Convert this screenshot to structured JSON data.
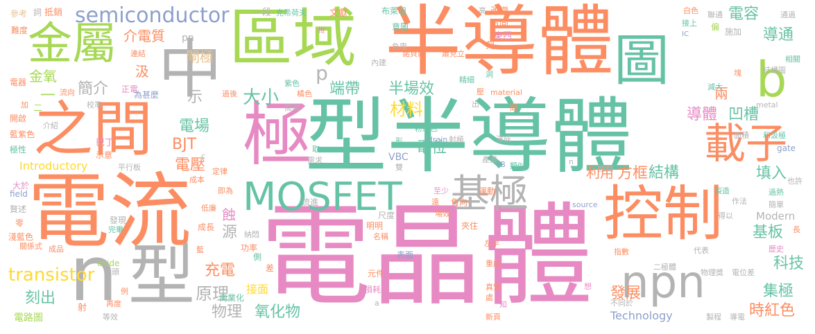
{
  "colors": {
    "pink": "#e78ac3",
    "green": "#66c2a5",
    "orange": "#fc8d62",
    "lime": "#a6d854",
    "gray": "#b3b3b3",
    "blue": "#8da0cb",
    "yellow": "#ffd92f",
    "tan": "#e5c494"
  },
  "words": [
    {
      "text": "電晶體",
      "color": "pink"
    },
    {
      "text": "型半導體",
      "color": "green"
    },
    {
      "text": "半導體",
      "color": "orange"
    },
    {
      "text": "電流",
      "color": "orange"
    },
    {
      "text": "區域",
      "color": "lime"
    },
    {
      "text": "中",
      "color": "gray"
    },
    {
      "text": "之間",
      "color": "orange"
    },
    {
      "text": "極",
      "color": "pink"
    },
    {
      "text": "MOSFET",
      "color": "green"
    },
    {
      "text": "控制",
      "color": "orange"
    },
    {
      "text": "圖",
      "color": "green"
    },
    {
      "text": "型",
      "color": "gray"
    },
    {
      "text": "金屬",
      "color": "lime"
    },
    {
      "text": "n",
      "color": "gray"
    },
    {
      "text": "npn",
      "color": "gray"
    },
    {
      "text": "載子",
      "color": "orange"
    },
    {
      "text": "基極",
      "color": "gray"
    },
    {
      "text": "b",
      "color": "lime"
    },
    {
      "text": "semiconductor",
      "color": "blue"
    },
    {
      "text": "transistor",
      "color": "yellow"
    },
    {
      "text": "材料",
      "color": "yellow"
    },
    {
      "text": "大小",
      "color": "green"
    },
    {
      "text": "半場效",
      "color": "green"
    },
    {
      "text": "導體",
      "color": "pink"
    },
    {
      "text": "凹槽",
      "color": "green"
    },
    {
      "text": "電容",
      "color": "green"
    },
    {
      "text": "導通",
      "color": "green"
    },
    {
      "text": "端帶",
      "color": "green"
    },
    {
      "text": "電位",
      "color": "green"
    },
    {
      "text": "方框",
      "color": "orange"
    },
    {
      "text": "利用",
      "color": "orange"
    },
    {
      "text": "結構",
      "color": "green"
    },
    {
      "text": "填入",
      "color": "green"
    },
    {
      "text": "基板",
      "color": "green"
    },
    {
      "text": "科技",
      "color": "green"
    },
    {
      "text": "集極",
      "color": "green"
    },
    {
      "text": "時紅色",
      "color": "orange"
    },
    {
      "text": "發展",
      "color": "orange"
    },
    {
      "text": "氧化物",
      "color": "green"
    },
    {
      "text": "原理",
      "color": "gray"
    },
    {
      "text": "物理",
      "color": "gray"
    },
    {
      "text": "刻出",
      "color": "green"
    },
    {
      "text": "充電",
      "color": "orange"
    },
    {
      "text": "電壓",
      "color": "orange"
    },
    {
      "text": "電場",
      "color": "green"
    },
    {
      "text": "BJT",
      "color": "orange"
    },
    {
      "text": "閘極",
      "color": "tan"
    },
    {
      "text": "介電質",
      "color": "orange"
    },
    {
      "text": "簡介",
      "color": "gray"
    },
    {
      "text": "金氧",
      "color": "lime"
    },
    {
      "text": "p",
      "color": "gray"
    },
    {
      "text": "Introductory",
      "color": "yellow"
    },
    {
      "text": "Technology",
      "color": "blue"
    },
    {
      "text": "Modern",
      "color": "gray"
    },
    {
      "text": "VBC",
      "color": "blue"
    },
    {
      "text": "電路圖",
      "color": "lime"
    },
    {
      "text": "接面",
      "color": "yellow"
    },
    {
      "text": "源",
      "color": "gray"
    },
    {
      "text": "蝕",
      "color": "pink"
    },
    {
      "text": "汲",
      "color": "orange"
    },
    {
      "text": "兩",
      "color": "orange"
    },
    {
      "text": "示",
      "color": "gray"
    },
    {
      "text": "一",
      "color": "lime"
    },
    {
      "text": "參考",
      "color": "tan"
    },
    {
      "text": "詞",
      "color": "gray"
    },
    {
      "text": "抵銷",
      "color": "orange"
    },
    {
      "text": "一段",
      "color": "gray"
    },
    {
      "text": "克希荷夫",
      "color": "green"
    },
    {
      "text": "文獻",
      "color": "orange"
    },
    {
      "text": "布萊坦",
      "color": "green"
    },
    {
      "text": "意圖",
      "color": "green"
    },
    {
      "text": "高",
      "color": "gray"
    },
    {
      "text": "改變",
      "color": "orange"
    },
    {
      "text": "方向",
      "color": "orange"
    },
    {
      "text": "東西",
      "color": "pink"
    },
    {
      "text": "刻",
      "color": "orange"
    },
    {
      "text": "白色",
      "color": "orange"
    },
    {
      "text": "接上",
      "color": "green"
    },
    {
      "text": "聯通",
      "color": "gray"
    },
    {
      "text": "通過",
      "color": "gray"
    },
    {
      "text": "偏",
      "color": "lime"
    },
    {
      "text": "施加",
      "color": "gray"
    },
    {
      "text": "IC",
      "color": "blue"
    },
    {
      "text": "相",
      "color": "pink"
    },
    {
      "text": "難度",
      "color": "orange"
    },
    {
      "text": "pn",
      "color": "gray"
    },
    {
      "text": "電器",
      "color": "orange"
    },
    {
      "text": "流向",
      "color": "orange"
    },
    {
      "text": "連結",
      "color": "orange"
    },
    {
      "text": "正電",
      "color": "pink"
    },
    {
      "text": "為甚麼",
      "color": "blue"
    },
    {
      "text": "開啟",
      "color": "orange"
    },
    {
      "text": "介紹",
      "color": "gray"
    },
    {
      "text": "巴丁",
      "color": "pink"
    },
    {
      "text": "極性",
      "color": "green"
    },
    {
      "text": "藍紫色",
      "color": "orange"
    },
    {
      "text": "示意",
      "color": "orange"
    },
    {
      "text": "平行板",
      "color": "gray"
    },
    {
      "text": "大於",
      "color": "pink"
    },
    {
      "text": "field",
      "color": "blue"
    },
    {
      "text": "贅述",
      "color": "gray"
    },
    {
      "text": "零",
      "color": "orange"
    },
    {
      "text": "淺藍色",
      "color": "orange"
    },
    {
      "text": "關係式",
      "color": "orange"
    },
    {
      "text": "成品",
      "color": "orange"
    },
    {
      "text": "oxide",
      "color": "lime"
    },
    {
      "text": "箭頭",
      "color": "gray"
    },
    {
      "text": "等效",
      "color": "gray"
    },
    {
      "text": "再度",
      "color": "orange"
    },
    {
      "text": "例",
      "color": "orange"
    },
    {
      "text": "射",
      "color": "orange"
    },
    {
      "text": "發現",
      "color": "gray"
    },
    {
      "text": "完畢",
      "color": "green"
    },
    {
      "text": "成長",
      "color": "orange"
    },
    {
      "text": "低廉",
      "color": "orange"
    },
    {
      "text": "即為",
      "color": "orange"
    },
    {
      "text": "成本",
      "color": "orange"
    },
    {
      "text": "定律",
      "color": "orange"
    },
    {
      "text": "商業化",
      "color": "green"
    },
    {
      "text": "功率",
      "color": "orange"
    },
    {
      "text": "納悶",
      "color": "gray"
    },
    {
      "text": "側",
      "color": "green"
    },
    {
      "text": "差",
      "color": "orange"
    },
    {
      "text": "明明",
      "color": "orange"
    },
    {
      "text": "名稱",
      "color": "orange"
    },
    {
      "text": "尺度",
      "color": "gray"
    },
    {
      "text": "流進",
      "color": "gray"
    },
    {
      "text": "表面",
      "color": "blue"
    },
    {
      "text": "元件",
      "color": "orange"
    },
    {
      "text": "損耗",
      "color": "pink"
    },
    {
      "text": "場效",
      "color": "orange"
    },
    {
      "text": "至少",
      "color": "pink"
    },
    {
      "text": "負向",
      "color": "orange"
    },
    {
      "text": "運動",
      "color": "orange"
    },
    {
      "text": "夾住",
      "color": "orange"
    },
    {
      "text": "左半",
      "color": "orange"
    },
    {
      "text": "重成",
      "color": "orange"
    },
    {
      "text": "真實",
      "color": "orange"
    },
    {
      "text": "處",
      "color": "orange"
    },
    {
      "text": "新頁",
      "color": "orange"
    },
    {
      "text": "指數",
      "color": "orange"
    },
    {
      "text": "二極體",
      "color": "gray"
    },
    {
      "text": "物理獎",
      "color": "gray"
    },
    {
      "text": "電位差",
      "color": "gray"
    },
    {
      "text": "製程",
      "color": "gray"
    },
    {
      "text": "導電",
      "color": "gray"
    },
    {
      "text": "歷史",
      "color": "pink"
    },
    {
      "text": "簡單",
      "color": "gray"
    },
    {
      "text": "過熱",
      "color": "green"
    },
    {
      "text": "也許",
      "color": "gray"
    },
    {
      "text": "製造",
      "color": "green"
    },
    {
      "text": "作法",
      "color": "gray"
    },
    {
      "text": "得以",
      "color": "gray"
    },
    {
      "text": "代表",
      "color": "gray"
    },
    {
      "text": "不同於",
      "color": "gray"
    },
    {
      "text": "面積",
      "color": "gray"
    },
    {
      "text": "和汲極",
      "color": "green"
    },
    {
      "text": "gate",
      "color": "blue"
    },
    {
      "text": "metal",
      "color": "gray"
    },
    {
      "text": "結構圖",
      "color": "gray"
    },
    {
      "text": "相關",
      "color": "green"
    },
    {
      "text": "減大",
      "color": "green"
    },
    {
      "text": "material",
      "color": "orange"
    },
    {
      "text": "精細",
      "color": "green"
    },
    {
      "text": "洞",
      "color": "green"
    },
    {
      "text": "間",
      "color": "orange"
    },
    {
      "text": "達成",
      "color": "gray"
    },
    {
      "text": "射極",
      "color": "gray"
    },
    {
      "text": "drain",
      "color": "blue"
    },
    {
      "text": "粉紅色",
      "color": "green"
    },
    {
      "text": "source",
      "color": "blue"
    },
    {
      "text": "需求",
      "color": "gray"
    },
    {
      "text": "類似",
      "color": "green"
    },
    {
      "text": "IB",
      "color": "blue"
    },
    {
      "text": "產業",
      "color": "gray"
    },
    {
      "text": "蝕刻",
      "color": "gray"
    },
    {
      "text": "過後",
      "color": "orange"
    },
    {
      "text": "簡寫",
      "color": "gray"
    },
    {
      "text": "橘色",
      "color": "orange"
    },
    {
      "text": "紫色",
      "color": "green"
    },
    {
      "text": "內建",
      "color": "gray"
    },
    {
      "text": "負電",
      "color": "gray"
    },
    {
      "text": "諾貝爾",
      "color": "orange"
    },
    {
      "text": "蕭克立",
      "color": "orange"
    },
    {
      "text": "校準",
      "color": "gray"
    },
    {
      "text": "二",
      "color": "lime"
    },
    {
      "text": "加",
      "color": "orange"
    },
    {
      "text": "取",
      "color": "green"
    },
    {
      "text": "形",
      "color": "green"
    },
    {
      "text": "雙",
      "color": "gray"
    },
    {
      "text": "a",
      "color": "gray"
    },
    {
      "text": "知",
      "color": "pink"
    },
    {
      "text": "想",
      "color": "pink"
    },
    {
      "text": "塊",
      "color": "orange"
    },
    {
      "text": "長",
      "color": "orange"
    },
    {
      "text": "壓",
      "color": "orange"
    },
    {
      "text": "遠",
      "color": "orange"
    },
    {
      "text": "c",
      "color": "gray"
    },
    {
      "text": "n",
      "color": "gray"
    },
    {
      "text": "出",
      "color": "gray"
    },
    {
      "text": "藍",
      "color": "orange"
    }
  ]
}
